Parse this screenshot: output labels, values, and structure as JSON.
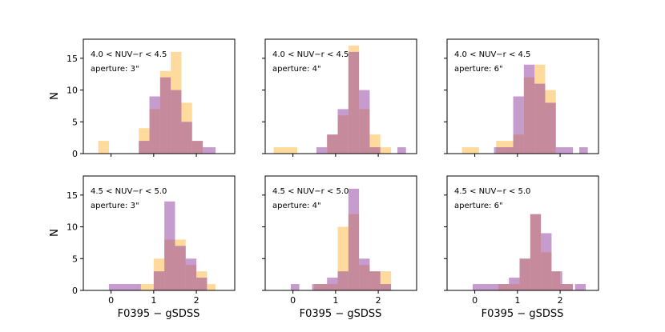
{
  "figure": {
    "xlabel": "F0395 − gSDSS",
    "ylabel": "N",
    "colors": {
      "series_a": "#fdb73a",
      "series_b": "#8e3a9e",
      "frame": "#000000"
    }
  },
  "chart_data": [
    {
      "type": "bar",
      "annotation_line1": "4.0 < NUV−r < 4.5",
      "annotation_line2": "aperture: 3\"",
      "xlim": [
        -0.65,
        2.9
      ],
      "ylim": [
        0,
        18
      ],
      "xticks": [
        "0",
        "1",
        "2"
      ],
      "yticks": [
        "0",
        "5",
        "10",
        "15"
      ],
      "series": [
        {
          "name": "orange",
          "bins": [
            [
              -0.3,
              -0.05,
              2
            ],
            [
              0.65,
              0.9,
              4
            ],
            [
              0.9,
              1.15,
              7
            ],
            [
              1.15,
              1.4,
              13
            ],
            [
              1.4,
              1.65,
              16
            ],
            [
              1.65,
              1.9,
              8
            ],
            [
              1.9,
              2.15,
              2
            ]
          ]
        },
        {
          "name": "purple",
          "bins": [
            [
              0.65,
              0.9,
              2
            ],
            [
              0.9,
              1.15,
              9
            ],
            [
              1.15,
              1.4,
              12
            ],
            [
              1.4,
              1.65,
              10
            ],
            [
              1.65,
              1.9,
              5
            ],
            [
              1.9,
              2.15,
              2
            ],
            [
              2.15,
              2.45,
              1
            ]
          ]
        }
      ]
    },
    {
      "type": "bar",
      "annotation_line1": "4.0 < NUV−r < 4.5",
      "annotation_line2": "aperture: 4\"",
      "xlim": [
        -0.65,
        2.9
      ],
      "ylim": [
        0,
        18
      ],
      "xticks": [
        "0",
        "1",
        "2"
      ],
      "yticks": [
        "0",
        "5",
        "10",
        "15"
      ],
      "series": [
        {
          "name": "orange",
          "bins": [
            [
              -0.45,
              0.1,
              1
            ],
            [
              0.8,
              1.05,
              3
            ],
            [
              1.05,
              1.3,
              6
            ],
            [
              1.3,
              1.55,
              17
            ],
            [
              1.55,
              1.8,
              7
            ],
            [
              1.8,
              2.05,
              3
            ],
            [
              2.05,
              2.3,
              1
            ]
          ]
        },
        {
          "name": "purple",
          "bins": [
            [
              0.55,
              0.8,
              1
            ],
            [
              0.8,
              1.05,
              3
            ],
            [
              1.05,
              1.3,
              7
            ],
            [
              1.3,
              1.55,
              16
            ],
            [
              1.55,
              1.8,
              10
            ],
            [
              1.8,
              2.05,
              1
            ],
            [
              2.45,
              2.65,
              1
            ]
          ]
        }
      ]
    },
    {
      "type": "bar",
      "annotation_line1": "4.0 < NUV−r < 4.5",
      "annotation_line2": "aperture: 6\"",
      "xlim": [
        -0.65,
        2.9
      ],
      "ylim": [
        0,
        18
      ],
      "xticks": [
        "0",
        "1",
        "2"
      ],
      "yticks": [
        "0",
        "5",
        "10",
        "15"
      ],
      "series": [
        {
          "name": "orange",
          "bins": [
            [
              -0.3,
              0.1,
              1
            ],
            [
              0.5,
              0.9,
              2
            ],
            [
              0.9,
              1.15,
              3
            ],
            [
              1.15,
              1.4,
              12
            ],
            [
              1.4,
              1.65,
              14
            ],
            [
              1.65,
              1.9,
              10
            ]
          ]
        },
        {
          "name": "purple",
          "bins": [
            [
              0.45,
              0.6,
              1
            ],
            [
              0.6,
              0.9,
              1
            ],
            [
              0.9,
              1.15,
              9
            ],
            [
              1.15,
              1.4,
              14
            ],
            [
              1.4,
              1.65,
              11
            ],
            [
              1.65,
              1.9,
              8
            ],
            [
              1.9,
              2.3,
              1
            ],
            [
              2.45,
              2.65,
              1
            ]
          ]
        }
      ]
    },
    {
      "type": "bar",
      "annotation_line1": "4.5 < NUV−r < 5.0",
      "annotation_line2": "aperture: 3\"",
      "xlim": [
        -0.65,
        2.9
      ],
      "ylim": [
        0,
        18
      ],
      "xticks": [
        "0",
        "1",
        "2"
      ],
      "yticks": [
        "0",
        "5",
        "10",
        "15"
      ],
      "series": [
        {
          "name": "orange",
          "bins": [
            [
              0.7,
              1.0,
              1
            ],
            [
              1.0,
              1.25,
              5
            ],
            [
              1.25,
              1.5,
              8
            ],
            [
              1.5,
              1.75,
              8
            ],
            [
              1.75,
              2.0,
              4
            ],
            [
              2.0,
              2.25,
              3
            ],
            [
              2.25,
              2.45,
              1
            ]
          ]
        },
        {
          "name": "purple",
          "bins": [
            [
              -0.05,
              0.7,
              1
            ],
            [
              1.0,
              1.25,
              3
            ],
            [
              1.25,
              1.5,
              14
            ],
            [
              1.5,
              1.75,
              7
            ],
            [
              1.75,
              2.0,
              5
            ],
            [
              2.0,
              2.25,
              2
            ]
          ]
        }
      ]
    },
    {
      "type": "bar",
      "annotation_line1": "4.5 < NUV−r < 5.0",
      "annotation_line2": "aperture: 4\"",
      "xlim": [
        -0.65,
        2.9
      ],
      "ylim": [
        0,
        18
      ],
      "xticks": [
        "0",
        "1",
        "2"
      ],
      "yticks": [
        "0",
        "5",
        "10",
        "15"
      ],
      "series": [
        {
          "name": "orange",
          "bins": [
            [
              0.5,
              0.8,
              1
            ],
            [
              0.8,
              1.05,
              1
            ],
            [
              1.05,
              1.3,
              10
            ],
            [
              1.3,
              1.55,
              12
            ],
            [
              1.55,
              1.8,
              4
            ],
            [
              1.8,
              2.05,
              3
            ],
            [
              2.05,
              2.3,
              3
            ]
          ]
        },
        {
          "name": "purple",
          "bins": [
            [
              -0.05,
              0.15,
              1
            ],
            [
              0.45,
              0.8,
              1
            ],
            [
              0.8,
              1.05,
              2
            ],
            [
              1.05,
              1.3,
              3
            ],
            [
              1.3,
              1.55,
              16
            ],
            [
              1.55,
              1.8,
              5
            ],
            [
              1.8,
              2.05,
              3
            ],
            [
              2.05,
              2.3,
              1
            ]
          ]
        }
      ]
    },
    {
      "type": "bar",
      "annotation_line1": "4.5 < NUV−r < 5.0",
      "annotation_line2": "aperture: 6\"",
      "xlim": [
        -0.65,
        2.9
      ],
      "ylim": [
        0,
        18
      ],
      "xticks": [
        "0",
        "1",
        "2"
      ],
      "yticks": [
        "0",
        "5",
        "10",
        "15"
      ],
      "series": [
        {
          "name": "orange",
          "bins": [
            [
              0.55,
              0.8,
              1
            ],
            [
              0.8,
              1.05,
              1
            ],
            [
              1.05,
              1.3,
              5
            ],
            [
              1.3,
              1.55,
              12
            ],
            [
              1.55,
              1.8,
              6
            ],
            [
              1.8,
              2.0,
              3
            ],
            [
              2.0,
              2.3,
              1
            ]
          ]
        },
        {
          "name": "purple",
          "bins": [
            [
              -0.05,
              0.4,
              1
            ],
            [
              0.4,
              0.8,
              1
            ],
            [
              0.8,
              1.05,
              2
            ],
            [
              1.05,
              1.3,
              5
            ],
            [
              1.3,
              1.55,
              12
            ],
            [
              1.55,
              1.8,
              9
            ],
            [
              1.8,
              2.05,
              3
            ],
            [
              2.05,
              2.3,
              1
            ],
            [
              2.35,
              2.6,
              1
            ]
          ]
        }
      ]
    }
  ]
}
